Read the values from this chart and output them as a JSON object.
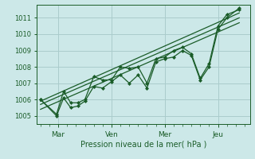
{
  "background_color": "#cce8e8",
  "grid_color": "#aacccc",
  "line_color": "#1a5c28",
  "marker_color": "#1a5c28",
  "xlabel": "Pression niveau de la mer( hPa )",
  "ylim": [
    1004.5,
    1011.8
  ],
  "yticks": [
    1005,
    1006,
    1007,
    1008,
    1009,
    1010,
    1011
  ],
  "xlim": [
    -0.2,
    11.8
  ],
  "day_labels": [
    "Mar",
    "Ven",
    "Mer",
    "Jeu"
  ],
  "day_positions": [
    1.0,
    4.0,
    7.0,
    10.0
  ],
  "series1_x": [
    0,
    0.9,
    1.3,
    1.7,
    2.1,
    2.5,
    3.0,
    3.5,
    4.0,
    4.5,
    5.0,
    5.5,
    6.0,
    6.5,
    7.0,
    7.5,
    8.0,
    8.5,
    9.0,
    9.5,
    10.0,
    10.5,
    11.2
  ],
  "series1_y": [
    1006.0,
    1005.1,
    1006.5,
    1005.8,
    1005.8,
    1006.0,
    1007.4,
    1007.2,
    1007.2,
    1008.0,
    1007.9,
    1008.0,
    1007.0,
    1008.5,
    1008.6,
    1009.0,
    1009.2,
    1008.8,
    1007.3,
    1008.2,
    1010.5,
    1011.2,
    1011.5
  ],
  "series2_x": [
    0,
    0.9,
    1.3,
    1.7,
    2.1,
    2.5,
    3.0,
    3.5,
    4.0,
    4.5,
    5.0,
    5.5,
    6.0,
    6.5,
    7.0,
    7.5,
    8.0,
    8.5,
    9.0,
    9.5,
    10.0,
    10.5,
    11.2
  ],
  "series2_y": [
    1006.0,
    1005.0,
    1006.1,
    1005.5,
    1005.6,
    1005.9,
    1006.8,
    1006.7,
    1007.1,
    1007.5,
    1007.0,
    1007.5,
    1006.7,
    1008.3,
    1008.5,
    1008.6,
    1009.0,
    1008.7,
    1007.2,
    1008.0,
    1010.3,
    1011.0,
    1011.6
  ],
  "trend1_x": [
    0,
    11.2
  ],
  "trend1_y": [
    1005.9,
    1011.3
  ],
  "trend2_x": [
    0,
    11.2
  ],
  "trend2_y": [
    1005.7,
    1011.0
  ],
  "trend3_x": [
    0,
    11.2
  ],
  "trend3_y": [
    1005.4,
    1010.7
  ]
}
